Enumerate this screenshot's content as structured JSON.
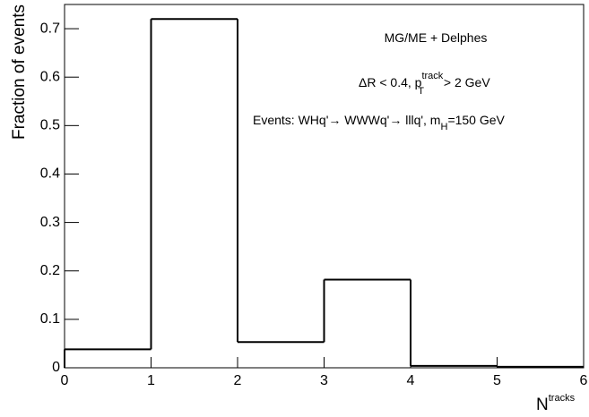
{
  "chart_data": {
    "type": "histogram",
    "bins": [
      0,
      1,
      2,
      3,
      4,
      5,
      6
    ],
    "values": [
      0.038,
      0.72,
      0.053,
      0.182,
      0.004,
      0.002
    ],
    "color": "#000000",
    "xlim": [
      0,
      6
    ],
    "xticks": [
      0,
      1,
      2,
      3,
      4,
      5,
      6
    ],
    "ylim": [
      0,
      0.75
    ],
    "yticks": [
      0,
      0.1,
      0.2,
      0.3,
      0.4,
      0.5,
      0.6,
      0.7
    ],
    "ylabel": "Fraction of events",
    "xlabel": [
      "N",
      "tracks"
    ],
    "annotations": [
      [
        "MG/ME + Delphes"
      ],
      [
        "ΔR < 0.4, p",
        "track",
        "T",
        " > 2 GeV"
      ],
      [
        "Events: WHq'→ WWWq'→ lllq', m",
        "H",
        "=150 GeV"
      ]
    ]
  }
}
